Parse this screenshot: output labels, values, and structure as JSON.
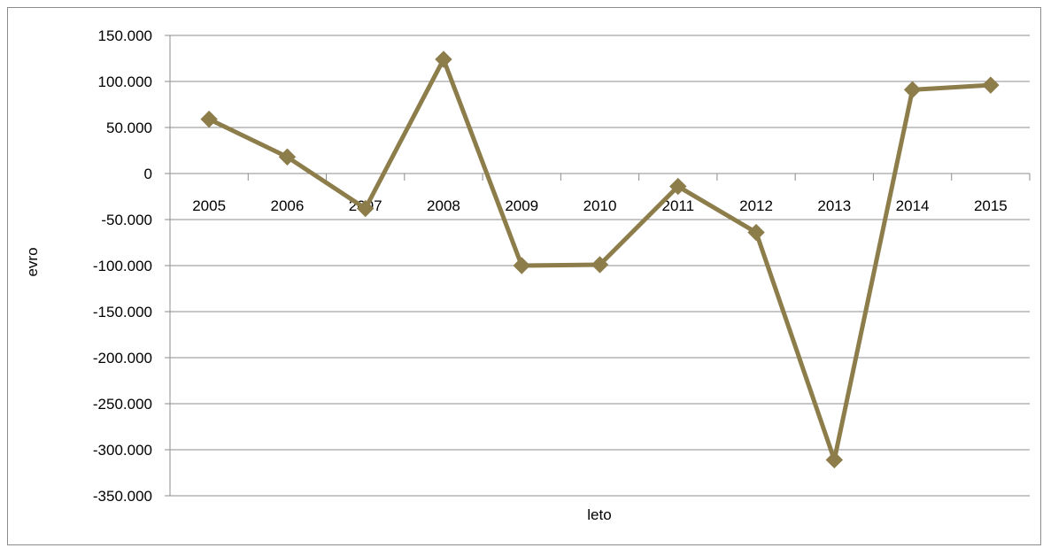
{
  "chart_data": {
    "type": "line",
    "title": "",
    "xlabel": "leto",
    "ylabel": "evro",
    "categories": [
      "2005",
      "2006",
      "2007",
      "2008",
      "2009",
      "2010",
      "2011",
      "2012",
      "2013",
      "2014",
      "2015"
    ],
    "series": [
      {
        "values": [
          59000,
          18000,
          -38000,
          124000,
          -100000,
          -99000,
          -14000,
          -64000,
          -311000,
          91000,
          96000
        ],
        "color": "#8c7d4a",
        "marker": "diamond"
      }
    ],
    "ylim": [
      -350000,
      150000
    ],
    "yticks": [
      150000,
      100000,
      50000,
      0,
      -50000,
      -100000,
      -150000,
      -200000,
      -250000,
      -300000,
      -350000
    ],
    "ytick_labels": [
      "150.000",
      "100.000",
      "50.000",
      "0",
      "-50.000",
      "-100.000",
      "-150.000",
      "-200.000",
      "-250.000",
      "-300.000",
      "-350.000"
    ],
    "grid": true,
    "legend": "none"
  }
}
